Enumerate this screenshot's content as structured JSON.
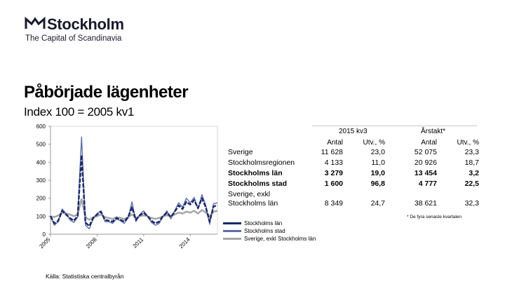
{
  "logo": {
    "wordmark": "Stockholm",
    "tagline": "The Capital of Scandinavia"
  },
  "title": "Påbörjade lägenheter",
  "subtitle": "Index 100 = 2005 kv1",
  "source": "Källa: Statistiska centralbyrån",
  "colors": {
    "stockholms_lan": "#1b2a6b",
    "stockholms_stad": "#5d6eb0",
    "sverige_exkl": "#a6a6a6",
    "axis": "#999999"
  },
  "chart_data": {
    "type": "line",
    "ylim": [
      0,
      600
    ],
    "yticks": [
      0,
      100,
      200,
      300,
      400,
      500,
      600
    ],
    "x_ticks": [
      "2005",
      "2008",
      "2011",
      "2014"
    ],
    "x_start": "2005 kv1",
    "n_periods": 44,
    "grid": false,
    "legend_position": "bottom",
    "series": [
      {
        "name": "Stockholms län",
        "values": [
          100,
          60,
          75,
          130,
          110,
          90,
          75,
          100,
          440,
          65,
          45,
          90,
          110,
          125,
          80,
          75,
          70,
          90,
          80,
          70,
          95,
          150,
          80,
          105,
          120,
          100,
          75,
          60,
          70,
          100,
          120,
          95,
          125,
          160,
          140,
          180,
          165,
          190,
          145,
          200,
          150,
          70,
          155,
          160
        ]
      },
      {
        "name": "Stockholms stad",
        "values": [
          100,
          50,
          70,
          140,
          115,
          80,
          65,
          95,
          540,
          50,
          30,
          85,
          115,
          130,
          70,
          70,
          60,
          85,
          75,
          60,
          90,
          180,
          70,
          110,
          130,
          100,
          65,
          50,
          60,
          100,
          130,
          85,
          130,
          175,
          150,
          200,
          175,
          205,
          140,
          220,
          160,
          55,
          170,
          175
        ]
      },
      {
        "name": "Sverige, exkl Stockholms län",
        "values": [
          100,
          95,
          105,
          120,
          115,
          110,
          100,
          110,
          195,
          95,
          80,
          95,
          100,
          110,
          95,
          90,
          85,
          95,
          90,
          85,
          95,
          110,
          90,
          100,
          105,
          100,
          90,
          85,
          90,
          100,
          105,
          100,
          110,
          120,
          115,
          125,
          120,
          130,
          115,
          135,
          120,
          100,
          125,
          130
        ]
      }
    ]
  },
  "table": {
    "group_headers": [
      "2015 kv3",
      "Årstakt*"
    ],
    "col_headers": [
      "Antal",
      "Utv., %",
      "Antal",
      "Utv., %"
    ],
    "rows": [
      {
        "label": "Sverige",
        "bold": false,
        "values": [
          "11 628",
          "23,0",
          "52 075",
          "23,3"
        ]
      },
      {
        "label": "Stockholmsregionen",
        "bold": false,
        "values": [
          "4 133",
          "11,0",
          "20 926",
          "18,7"
        ]
      },
      {
        "label": "Stockholms län",
        "bold": true,
        "values": [
          "3 279",
          "19,0",
          "13 454",
          "3,2"
        ]
      },
      {
        "label": "Stockholms stad",
        "bold": true,
        "values": [
          "1 600",
          "96,8",
          "4 777",
          "22,5"
        ]
      },
      {
        "label": "Sverige, exkl",
        "label2": "Stockholms län",
        "bold": false,
        "values": [
          "8 349",
          "24,7",
          "38 621",
          "32,3"
        ]
      }
    ],
    "footnote": "* De fyra senaste kvartalen"
  }
}
